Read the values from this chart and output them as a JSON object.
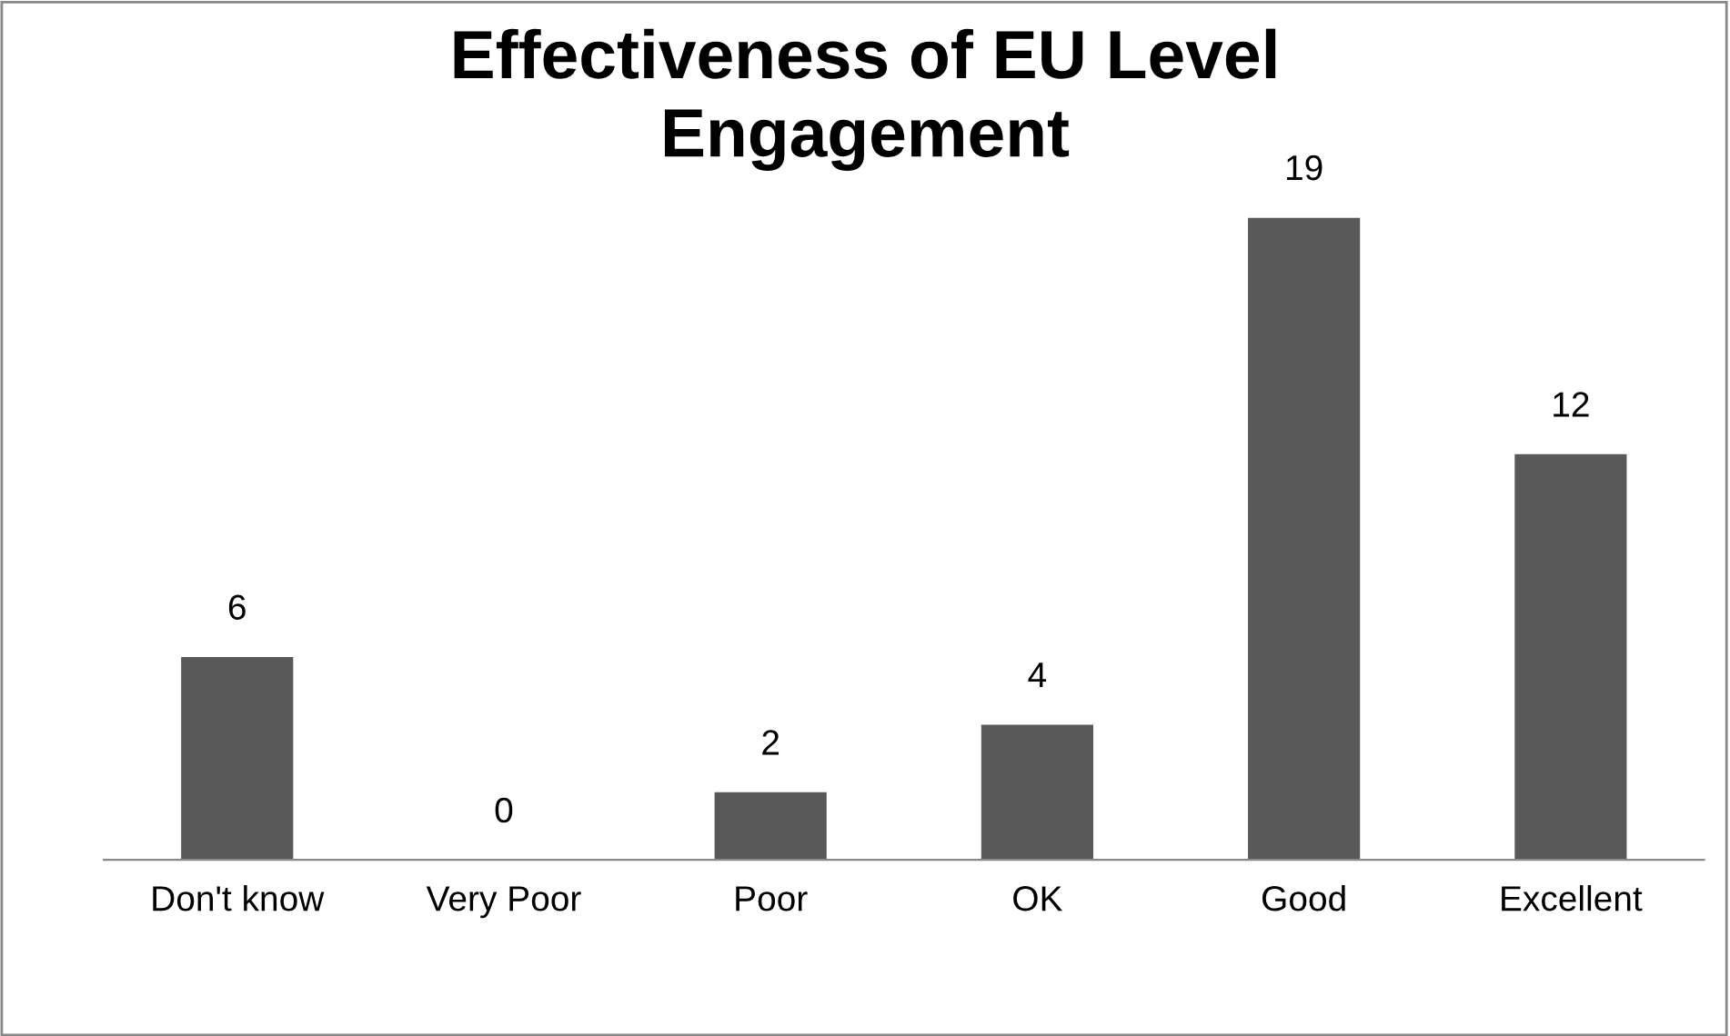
{
  "chart_data": {
    "type": "bar",
    "title": "Effectiveness of EU Level\nEngagement",
    "categories": [
      "Don't know",
      "Very Poor",
      "Poor",
      "OK",
      "Good",
      "Excellent"
    ],
    "values": [
      6,
      0,
      2,
      4,
      19,
      12
    ],
    "color": "#595959",
    "data_labels": true,
    "grid": false,
    "legend": false
  }
}
